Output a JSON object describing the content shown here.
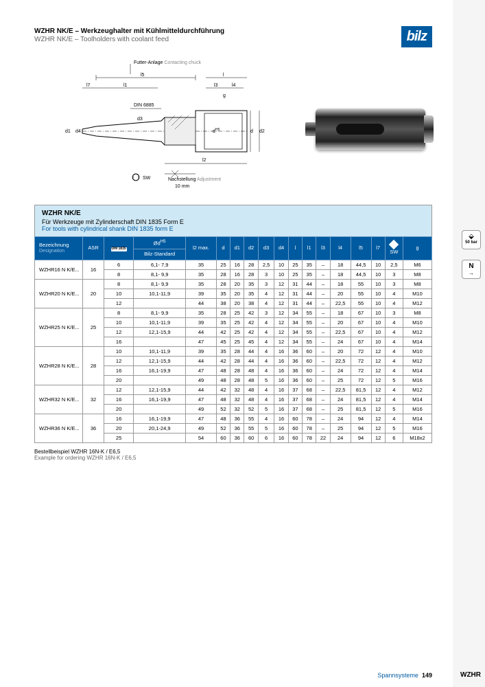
{
  "header": {
    "title_de": "WZHR NK/E – Werkzeughalter mit Kühlmitteldurchführung",
    "title_en": "WZHR NK/E – Toolholders with coolant feed",
    "logo": "bilz"
  },
  "diagram": {
    "chuck_label_de": "Futter-Anlage",
    "chuck_label_en": "Contacting chuck",
    "din_label": "DIN 6885",
    "sw_label": "SW",
    "adjust_de": "Nachstellung",
    "adjust_en": "Adjustment",
    "adjust_val": "10 mm",
    "dims": [
      "l7",
      "l1",
      "l5",
      "l",
      "l3",
      "l4",
      "g",
      "d1",
      "d4",
      "d3",
      "dH5",
      "d",
      "d2",
      "l2"
    ]
  },
  "info": {
    "title": "WZHR NK/E",
    "de": "Für Werkzeuge mit Zylinderschaft DIN 1835 Form E",
    "en": "For tools with cylindrical shank DIN 1835 form E"
  },
  "table": {
    "headers": {
      "designation_de": "Bezeichnung",
      "designation_en": "Designation",
      "asr": "ASR",
      "din": "DIN 1835",
      "bilz_std": "Bilz-Standard",
      "odh5": "Ød",
      "h5": "H5",
      "l2max": "l2 max.",
      "d": "d",
      "d1": "d1",
      "d2": "d2",
      "d3": "d3",
      "d4": "d4",
      "l": "l",
      "l1": "l1",
      "l3": "l3",
      "l4": "l4",
      "l5": "l5",
      "l7": "l7",
      "sw": "SW",
      "g": "g"
    },
    "groups": [
      {
        "name": "WZHR16 N K/E...",
        "asr": "16",
        "rows": [
          [
            "6",
            "6,1- 7,9",
            "35",
            "25",
            "16",
            "28",
            "2,5",
            "10",
            "25",
            "35",
            "–",
            "18",
            "44,5",
            "10",
            "2,5",
            "M6"
          ],
          [
            "8",
            "8,1- 9,9",
            "35",
            "28",
            "16",
            "28",
            "3",
            "10",
            "25",
            "35",
            "–",
            "18",
            "44,5",
            "10",
            "3",
            "M8"
          ]
        ]
      },
      {
        "name": "WZHR20 N K/E...",
        "asr": "20",
        "rows": [
          [
            "8",
            "8,1- 9,9",
            "35",
            "28",
            "20",
            "35",
            "3",
            "12",
            "31",
            "44",
            "–",
            "18",
            "55",
            "10",
            "3",
            "M8"
          ],
          [
            "10",
            "10,1-11,9",
            "39",
            "35",
            "20",
            "35",
            "4",
            "12",
            "31",
            "44",
            "–",
            "20",
            "55",
            "10",
            "4",
            "M10"
          ],
          [
            "12",
            "",
            "44",
            "38",
            "20",
            "38",
            "4",
            "12",
            "31",
            "44",
            "–",
            "22,5",
            "55",
            "10",
            "4",
            "M12"
          ]
        ]
      },
      {
        "name": "WZHR25 N K/E...",
        "asr": "25",
        "rows": [
          [
            "8",
            "8,1- 9,9",
            "35",
            "28",
            "25",
            "42",
            "3",
            "12",
            "34",
            "55",
            "–",
            "18",
            "67",
            "10",
            "3",
            "M8"
          ],
          [
            "10",
            "10,1-11,9",
            "39",
            "35",
            "25",
            "42",
            "4",
            "12",
            "34",
            "55",
            "–",
            "20",
            "67",
            "10",
            "4",
            "M10"
          ],
          [
            "12",
            "12,1-15,9",
            "44",
            "42",
            "25",
            "42",
            "4",
            "12",
            "34",
            "55",
            "–",
            "22,5",
            "67",
            "10",
            "4",
            "M12"
          ],
          [
            "16",
            "",
            "47",
            "45",
            "25",
            "45",
            "4",
            "12",
            "34",
            "55",
            "–",
            "24",
            "67",
            "10",
            "4",
            "M14"
          ]
        ]
      },
      {
        "name": "WZHR28 N K/E...",
        "asr": "28",
        "rows": [
          [
            "10",
            "10,1-11,9",
            "39",
            "35",
            "28",
            "44",
            "4",
            "16",
            "36",
            "60",
            "–",
            "20",
            "72",
            "12",
            "4",
            "M10"
          ],
          [
            "12",
            "12,1-15,9",
            "44",
            "42",
            "28",
            "44",
            "4",
            "16",
            "36",
            "60",
            "–",
            "22,5",
            "72",
            "12",
            "4",
            "M12"
          ],
          [
            "16",
            "16,1-19,9",
            "47",
            "48",
            "28",
            "48",
            "4",
            "16",
            "36",
            "60",
            "–",
            "24",
            "72",
            "12",
            "4",
            "M14"
          ],
          [
            "20",
            "",
            "49",
            "48",
            "28",
            "48",
            "5",
            "16",
            "36",
            "60",
            "–",
            "25",
            "72",
            "12",
            "5",
            "M16"
          ]
        ]
      },
      {
        "name": "WZHR32 N K/E...",
        "asr": "32",
        "rows": [
          [
            "12",
            "12,1-15,9",
            "44",
            "42",
            "32",
            "48",
            "4",
            "16",
            "37",
            "68",
            "–",
            "22,5",
            "81,5",
            "12",
            "4",
            "M12"
          ],
          [
            "16",
            "16,1-19,9",
            "47",
            "48",
            "32",
            "48",
            "4",
            "16",
            "37",
            "68",
            "–",
            "24",
            "81,5",
            "12",
            "4",
            "M14"
          ],
          [
            "20",
            "",
            "49",
            "52",
            "32",
            "52",
            "5",
            "16",
            "37",
            "68",
            "–",
            "25",
            "81,5",
            "12",
            "5",
            "M16"
          ]
        ]
      },
      {
        "name": "WZHR36 N K/E...",
        "asr": "36",
        "rows": [
          [
            "16",
            "16,1-19,9",
            "47",
            "48",
            "36",
            "55",
            "4",
            "16",
            "60",
            "78",
            "–",
            "24",
            "94",
            "12",
            "4",
            "M14"
          ],
          [
            "20",
            "20,1-24,9",
            "49",
            "52",
            "36",
            "55",
            "5",
            "16",
            "60",
            "78",
            "–",
            "25",
            "94",
            "12",
            "5",
            "M16"
          ],
          [
            "25",
            "",
            "54",
            "60",
            "36",
            "60",
            "6",
            "16",
            "60",
            "78",
            "22",
            "24",
            "94",
            "12",
            "6",
            "M18x2"
          ]
        ]
      }
    ]
  },
  "footnote": {
    "de": "Bestellbeispiel WZHR 16N-K / E6,5",
    "en": "Example for ordering WZHR 16N-K / E6,5"
  },
  "footer": {
    "category": "Spannsysteme",
    "page": "149",
    "code": "WZHR"
  },
  "side": {
    "badge1": "50 bar",
    "badge2": "N"
  }
}
